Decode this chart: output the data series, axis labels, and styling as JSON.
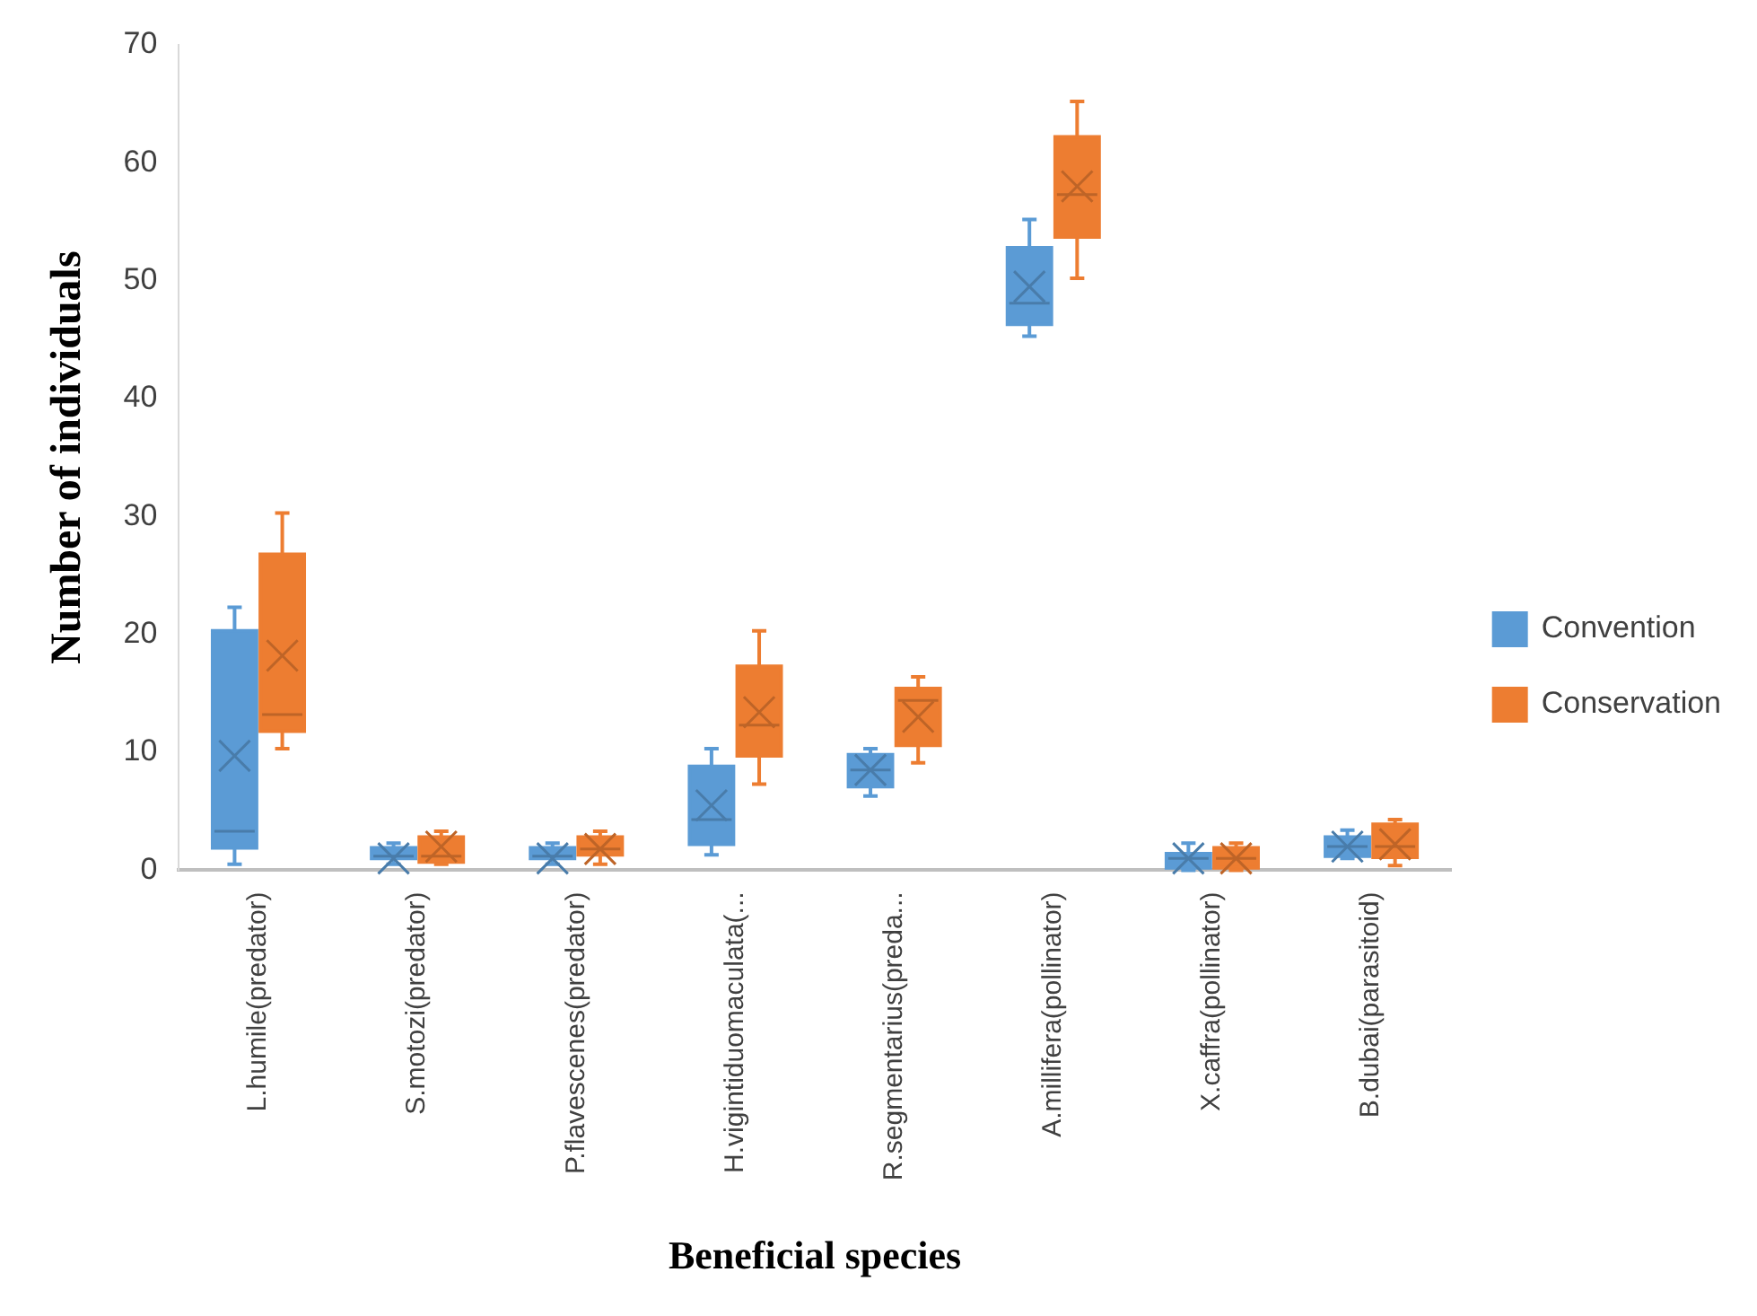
{
  "chart_data": {
    "type": "box",
    "xlabel": "Beneficial species",
    "ylabel": "Number of individuals",
    "categories": [
      "L.humile(predator)",
      "S.motozi(predator)",
      "P.flavescenes(predator)",
      "H.vigintiduomaculata(...",
      "R.segmentarius(preda...",
      "A.millifera(pollinator)",
      "X.caffra(pollinator)",
      "B.dubai(parasitoid)"
    ],
    "ylim": [
      0,
      70
    ],
    "yticks": [
      0,
      10,
      20,
      30,
      40,
      50,
      60,
      70
    ],
    "grid": false,
    "legend": "right",
    "series": [
      {
        "name": "Convention",
        "color": "#5b9bd5",
        "boxes": [
          {
            "low": 0.5,
            "q1": 1.9,
            "median": 3.3,
            "q3": 20.3,
            "high": 22.3,
            "mean": 9.7
          },
          {
            "low": 0.5,
            "q1": 1,
            "median": 1.2,
            "q3": 1.9,
            "high": 2.3,
            "mean": 1
          },
          {
            "low": 0.5,
            "q1": 1,
            "median": 1.2,
            "q3": 1.9,
            "high": 2.3,
            "mean": 1
          },
          {
            "low": 1.3,
            "q1": 2.2,
            "median": 4.3,
            "q3": 8.8,
            "high": 10.3,
            "mean": 5.5
          },
          {
            "low": 6.3,
            "q1": 7.1,
            "median": 8.5,
            "q3": 9.8,
            "high": 10.3,
            "mean": 8.5
          },
          {
            "low": 45.3,
            "q1": 46.3,
            "median": 48.1,
            "q3": 52.8,
            "high": 55.2,
            "mean": 49.5
          },
          {
            "low": 0,
            "q1": 0.2,
            "median": 1,
            "q3": 1.4,
            "high": 2.3,
            "mean": 1
          },
          {
            "low": 1,
            "q1": 1.2,
            "median": 2,
            "q3": 2.8,
            "high": 3.4,
            "mean": 2
          }
        ]
      },
      {
        "name": "Conservation",
        "color": "#ed7d31",
        "boxes": [
          {
            "low": 10.3,
            "q1": 11.8,
            "median": 13.2,
            "q3": 26.8,
            "high": 30.3,
            "mean": 18.2
          },
          {
            "low": 0.5,
            "q1": 0.7,
            "median": 1.2,
            "q3": 2.8,
            "high": 3.3,
            "mean": 2
          },
          {
            "low": 0.5,
            "q1": 1.3,
            "median": 1.8,
            "q3": 2.8,
            "high": 3.3,
            "mean": 1.8
          },
          {
            "low": 7.3,
            "q1": 9.7,
            "median": 12.3,
            "q3": 17.3,
            "high": 20.3,
            "mean": 13.4
          },
          {
            "low": 9.1,
            "q1": 10.6,
            "median": 14.4,
            "q3": 15.4,
            "high": 16.4,
            "mean": 13
          },
          {
            "low": 50.2,
            "q1": 53.7,
            "median": 57.3,
            "q3": 62.2,
            "high": 65.2,
            "mean": 58
          },
          {
            "low": 0,
            "q1": 0.2,
            "median": 1,
            "q3": 1.9,
            "high": 2.3,
            "mean": 1
          },
          {
            "low": 0.4,
            "q1": 1.1,
            "median": 2,
            "q3": 3.9,
            "high": 4.3,
            "mean": 2.2
          }
        ]
      }
    ]
  }
}
